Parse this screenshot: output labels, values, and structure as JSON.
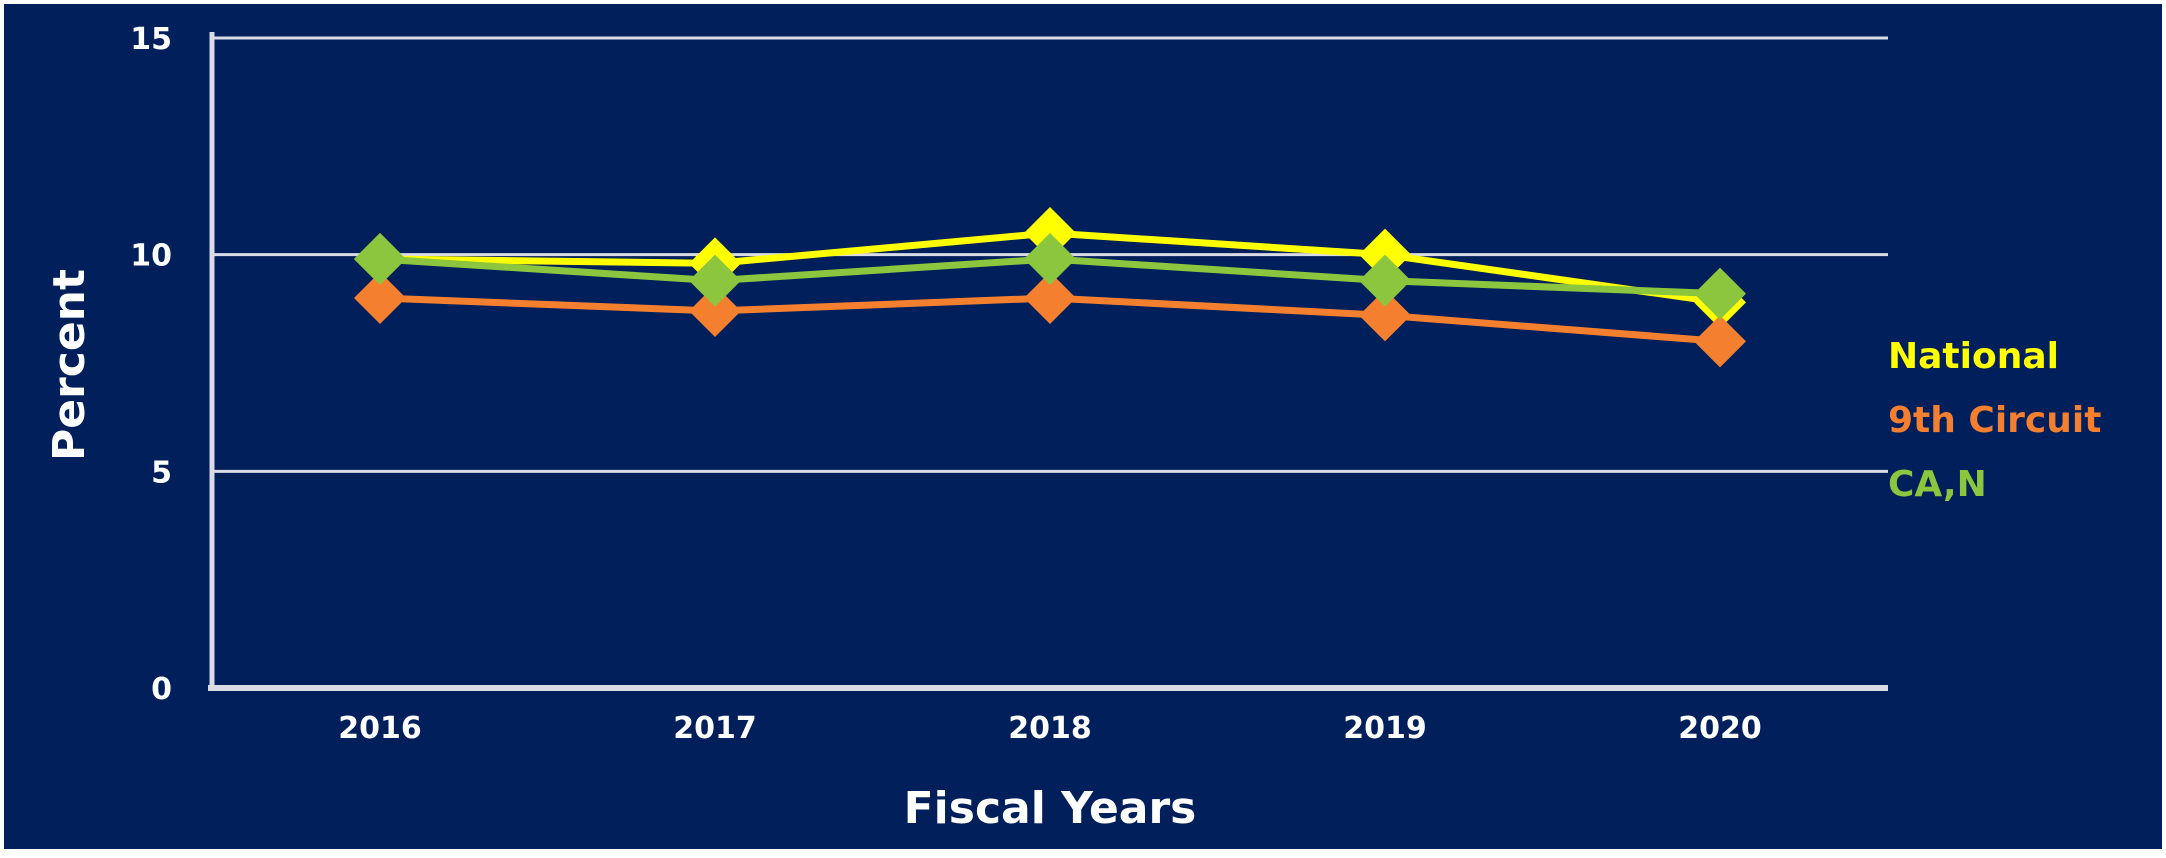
{
  "chart_data": {
    "type": "line",
    "title": "",
    "xlabel": "Fiscal Years",
    "ylabel": "Percent",
    "x": [
      "2016",
      "2017",
      "2018",
      "2019",
      "2020"
    ],
    "ylim": [
      0,
      15
    ],
    "yticks": [
      "0",
      "5",
      "10",
      "15"
    ],
    "grid": true,
    "legend_position": "right",
    "background_color": "#001f5b",
    "series": [
      {
        "name": "National",
        "color": "#ffff00",
        "values": [
          9.9,
          9.8,
          10.5,
          10.0,
          8.9
        ]
      },
      {
        "name": "9th Circuit",
        "color": "#f47f2f",
        "values": [
          9.0,
          8.7,
          9.0,
          8.6,
          8.0
        ]
      },
      {
        "name": "CA,N",
        "color": "#8cc63f",
        "values": [
          9.9,
          9.4,
          9.9,
          9.4,
          9.1
        ]
      }
    ]
  }
}
